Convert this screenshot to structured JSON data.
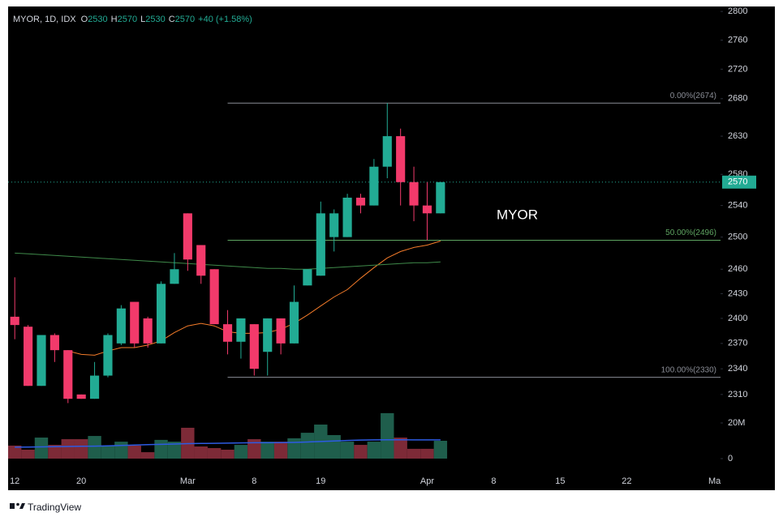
{
  "chart_data": {
    "type": "candlestick",
    "header": {
      "symbol": "MYOR, 1D, IDX",
      "fields": [
        {
          "key": "O",
          "value": 2530
        },
        {
          "key": "H",
          "value": 2570
        },
        {
          "key": "L",
          "value": 2530
        },
        {
          "key": "C",
          "value": 2570
        }
      ],
      "change": "+40 (+1.58%)"
    },
    "annotation": "MYOR",
    "footer": "TradingView",
    "log_scale": true,
    "up_color": "#22ab94",
    "down_color": "#f23a6b",
    "volume_up_color": "#1f5e4c",
    "volume_down_color": "#7d2a37",
    "open": [
      2402,
      2390,
      2320,
      2380,
      2362,
      2310,
      2305,
      2332,
      2370,
      2420,
      2400,
      2370,
      2442,
      2530,
      2490,
      2460,
      2393,
      2372,
      2393,
      2360,
      2400,
      2370,
      2440,
      2452,
      2500,
      2500,
      2550,
      2540,
      2590,
      2630,
      2570,
      2540,
      2530
    ],
    "high": [
      2450,
      2392,
      2380,
      2382,
      2362,
      2310,
      2348,
      2382,
      2416,
      2420,
      2402,
      2445,
      2480,
      2530,
      2490,
      2460,
      2410,
      2400,
      2393,
      2400,
      2400,
      2440,
      2460,
      2545,
      2535,
      2555,
      2555,
      2600,
      2674,
      2640,
      2590,
      2570,
      2570
    ],
    "low": [
      2375,
      2320,
      2320,
      2348,
      2300,
      2305,
      2305,
      2330,
      2368,
      2365,
      2365,
      2370,
      2442,
      2458,
      2442,
      2393,
      2357,
      2352,
      2332,
      2332,
      2357,
      2370,
      2440,
      2452,
      2482,
      2500,
      2530,
      2540,
      2575,
      2540,
      2520,
      2496,
      2530
    ],
    "close": [
      2392,
      2320,
      2380,
      2362,
      2305,
      2305,
      2332,
      2380,
      2412,
      2370,
      2370,
      2442,
      2460,
      2472,
      2452,
      2393,
      2372,
      2400,
      2340,
      2400,
      2370,
      2420,
      2460,
      2530,
      2530,
      2550,
      2540,
      2590,
      2630,
      2570,
      2540,
      2530,
      2570
    ],
    "series": [
      {
        "name": "MA short",
        "color": "#f57c2a",
        "values": [
          null,
          null,
          null,
          null,
          2361,
          2357,
          2356,
          2361,
          2365,
          2365,
          2368,
          2373,
          2383,
          2391,
          2394,
          2391,
          2384,
          2382,
          2382,
          2383,
          2387,
          2394,
          2404,
          2415,
          2426,
          2435,
          2449,
          2462,
          2474,
          2482,
          2487,
          2490,
          2495
        ]
      },
      {
        "name": "MA long",
        "color": "#3f8a4a",
        "values": [
          2480,
          2479,
          2478,
          2477,
          2476,
          2475,
          2474,
          2473,
          2472,
          2471,
          2470,
          2469,
          2468,
          2467,
          2466,
          2465,
          2464,
          2463,
          2462,
          2461,
          2461,
          2460,
          2460,
          2461,
          2462,
          2463,
          2464,
          2465,
          2466,
          2467,
          2468,
          2468,
          2469
        ]
      }
    ],
    "volume": [
      7300000,
      5000000,
      11800000,
      7700000,
      10900000,
      10900000,
      12700000,
      7300000,
      9500000,
      7300000,
      3600000,
      10500000,
      9500000,
      17300000,
      6800000,
      5900000,
      5000000,
      7700000,
      10900000,
      9500000,
      9500000,
      11400000,
      14500000,
      19100000,
      13200000,
      9500000,
      7700000,
      9500000,
      25500000,
      11800000,
      5500000,
      5500000,
      10000000
    ],
    "volume_ma": {
      "color": "#2d5be3",
      "values": [
        6400000,
        6500000,
        6600000,
        6700000,
        6800000,
        6900000,
        7000000,
        7200000,
        7400000,
        7600000,
        7800000,
        8000000,
        8200000,
        8400000,
        8500000,
        8600000,
        8700000,
        8800000,
        8900000,
        8900000,
        9000000,
        9100000,
        9300000,
        9600000,
        9900000,
        10200000,
        10400000,
        10500000,
        10600000,
        10600000,
        10500000,
        10500000,
        10500000
      ]
    },
    "fib_levels": [
      {
        "label": "0.00%(2674)",
        "value": 2674,
        "color": "#8a8d96"
      },
      {
        "label": "50.00%(2496)",
        "value": 2496,
        "color": "#5fa562"
      },
      {
        "label": "100.00%(2330)",
        "value": 2330,
        "color": "#8a8d96"
      }
    ],
    "ylim": [
      2293,
      2807
    ],
    "yticks": [
      2800,
      2760,
      2720,
      2680,
      2630,
      2580,
      2540,
      2500,
      2460,
      2430,
      2400,
      2370,
      2340,
      2310
    ],
    "vlim": [
      0,
      30000000
    ],
    "vticks": [
      {
        "value": 20000000,
        "label": "20M"
      },
      0
    ],
    "xlim": [
      -0.5,
      53.05
    ],
    "xticks": [
      {
        "value": 0,
        "label": "12"
      },
      {
        "value": 5,
        "label": "20"
      },
      {
        "value": 13,
        "label": "Mar"
      },
      {
        "value": 18,
        "label": "8"
      },
      {
        "value": 23,
        "label": "19"
      },
      {
        "value": 31,
        "label": "Apr"
      },
      {
        "value": 36,
        "label": "8"
      },
      {
        "value": 41,
        "label": "15"
      },
      {
        "value": 46,
        "label": "22"
      },
      {
        "value": 52.6,
        "label": "Ma"
      }
    ]
  }
}
